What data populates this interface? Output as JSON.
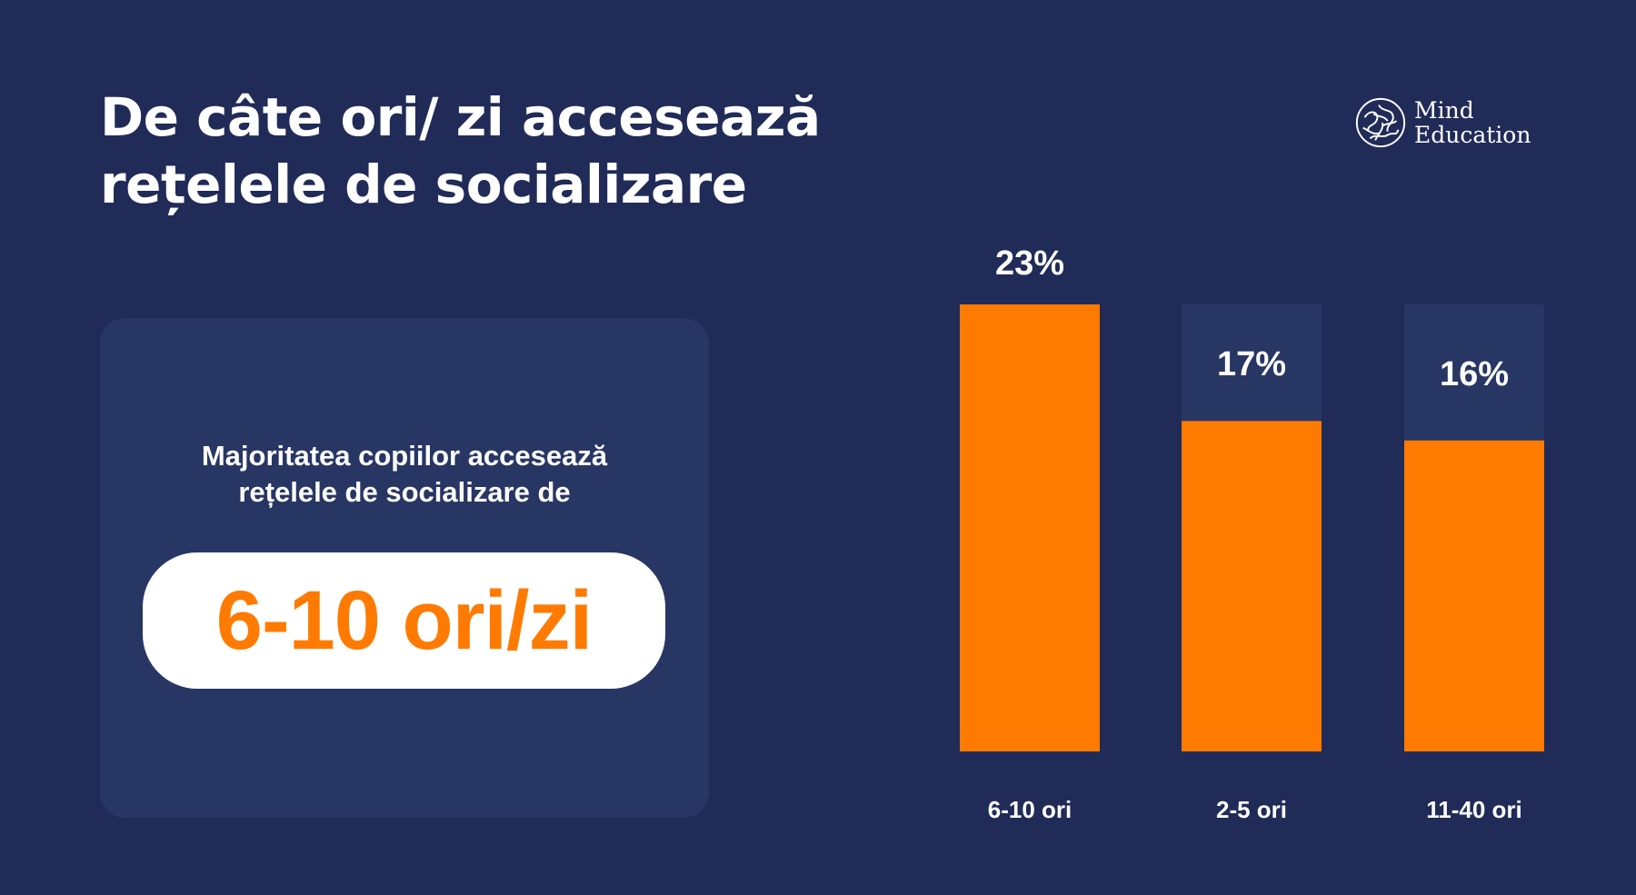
{
  "header": {
    "title_line1": "De câte ori/ zi accesează",
    "title_line2": "rețelele de socializare"
  },
  "logo": {
    "icon": "brain-icon",
    "line1": "Mind",
    "line2": "Education"
  },
  "summary": {
    "line1": "Majoritatea copiilor accesează",
    "line2": "rețelele de socializare de",
    "highlight": "6-10 ori/zi"
  },
  "colors": {
    "background": "#212b58",
    "card": "#283664",
    "bar_fill": "#ff7a00",
    "bar_track": "#283664",
    "text": "#ffffff"
  },
  "chart_data": {
    "type": "bar",
    "categories": [
      "6-10 ori",
      "2-5 ori",
      "11-40 ori"
    ],
    "values": [
      23,
      17,
      16
    ],
    "value_labels": [
      "23%",
      "17%",
      "16%"
    ],
    "ylim": [
      0,
      23
    ],
    "grid": false,
    "legend": "none"
  }
}
